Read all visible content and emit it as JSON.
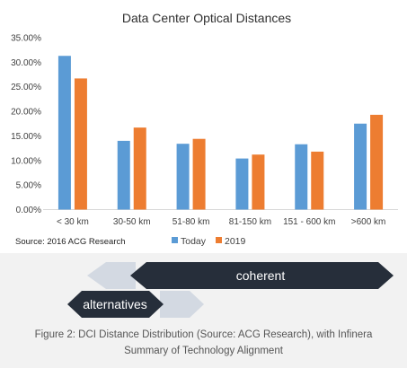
{
  "chart_data": {
    "type": "bar",
    "title": "Data Center Optical Distances",
    "categories": [
      "< 30 km",
      "30-50 km",
      "51-80 km",
      "81-150 km",
      "151 - 600 km",
      ">600 km"
    ],
    "series": [
      {
        "name": "Today",
        "values": [
          31.3,
          14.0,
          13.4,
          10.4,
          13.3,
          17.5
        ]
      },
      {
        "name": "2019",
        "values": [
          26.7,
          16.7,
          14.4,
          11.2,
          11.8,
          19.3
        ]
      }
    ],
    "y_ticks": [
      "0.00%",
      "5.00%",
      "10.00%",
      "15.00%",
      "20.00%",
      "25.00%",
      "30.00%",
      "35.00%"
    ],
    "ylim": [
      0,
      35
    ],
    "grid": false,
    "legend_position": "bottom",
    "source": "Source:  2016 ACG Research",
    "colors": {
      "Today": "#5b9bd5",
      "2019": "#ed7d31"
    }
  },
  "diagram": {
    "coherent_label": "coherent",
    "alternatives_label": "alternatives",
    "dark_color": "#262e3a",
    "light_color": "#d3d9e2"
  },
  "caption": {
    "line1": "Figure 2: DCI Distance Distribution (Source: ACG Research), with Infinera",
    "line2": "Summary of Technology Alignment"
  }
}
